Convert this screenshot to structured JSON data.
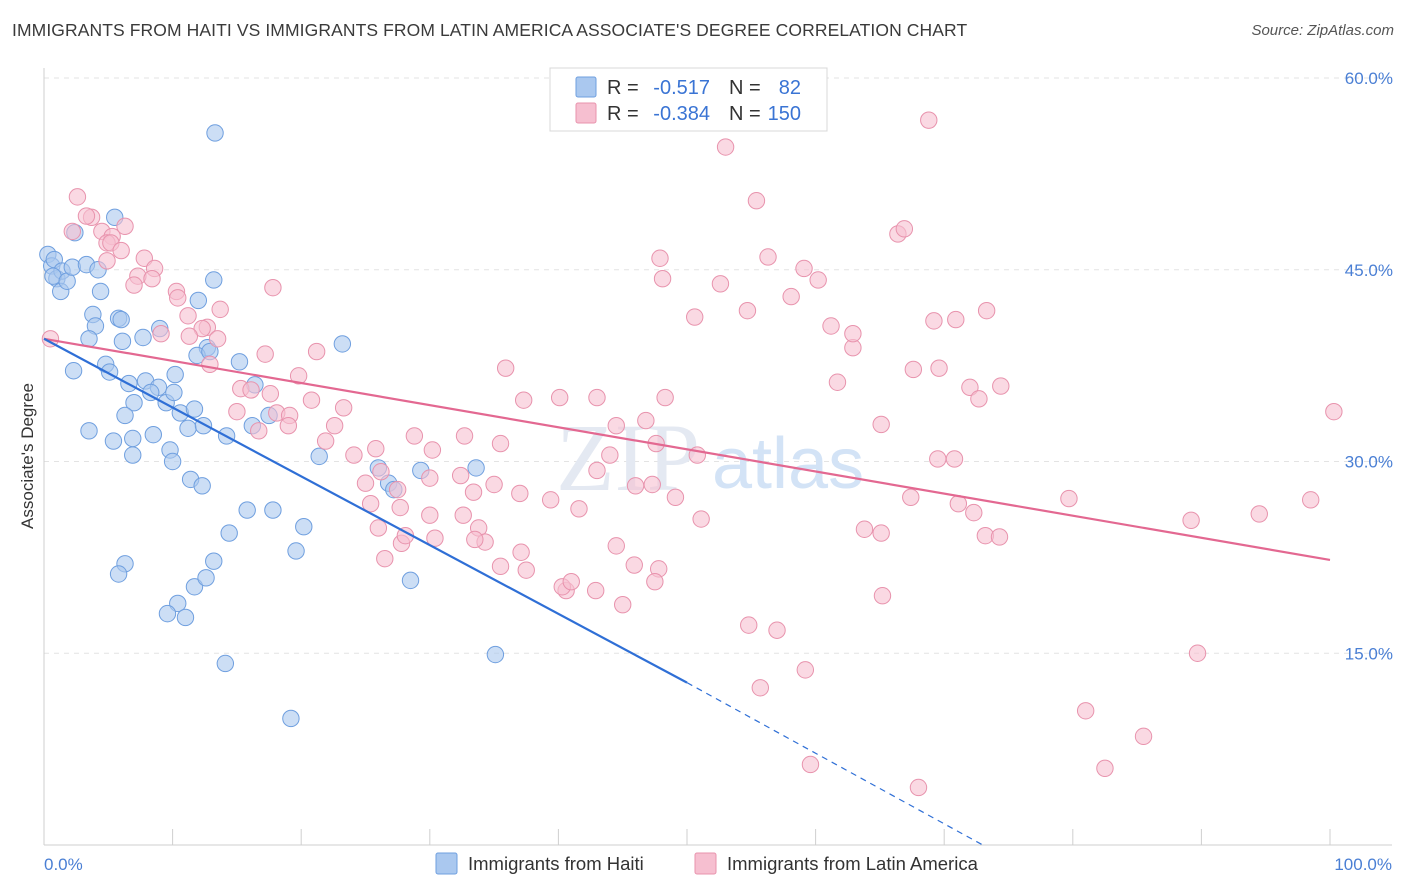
{
  "title": "IMMIGRANTS FROM HAITI VS IMMIGRANTS FROM LATIN AMERICA ASSOCIATE'S DEGREE CORRELATION CHART",
  "source": "Source: ZipAtlas.com",
  "watermark": {
    "part1": "ZIP",
    "part2": "atlas"
  },
  "colors": {
    "haiti_fill": "#aac8ef",
    "haiti_stroke": "#6f9fdf",
    "haiti_line": "#2f6fd6",
    "latam_fill": "#f6bfd0",
    "latam_stroke": "#e893ad",
    "latam_line": "#e36891",
    "tick_text": "#4a7fd4",
    "grid": "#e3e3e3"
  },
  "legend": {
    "rows": [
      {
        "r_label": "R =",
        "r_value": "-0.517",
        "n_label": "N =",
        "n_value": "82"
      },
      {
        "r_label": "R =",
        "r_value": "-0.384",
        "n_label": "N =",
        "n_value": "150"
      }
    ]
  },
  "chart_data": {
    "type": "scatter",
    "title": "IMMIGRANTS FROM HAITI VS IMMIGRANTS FROM LATIN AMERICA ASSOCIATE'S DEGREE CORRELATION CHART",
    "xlabel": "",
    "ylabel": "Associate's Degree",
    "xlim": [
      0,
      100
    ],
    "ylim": [
      0,
      60
    ],
    "x_tick_labels": [
      "0.0%",
      "100.0%"
    ],
    "y_ticks": [
      15,
      30,
      45,
      60
    ],
    "y_tick_labels": [
      "15.0%",
      "30.0%",
      "45.0%",
      "60.0%"
    ],
    "grid": true,
    "legend_position": "top-center",
    "series": [
      {
        "name": "Immigrants from Haiti",
        "color": "#aac8ef",
        "trend": {
          "x": [
            0,
            50
          ],
          "y": [
            39.6,
            12.7
          ],
          "dashed_to": {
            "x": 73,
            "y": 0
          }
        },
        "points": [
          [
            0.3,
            46.2
          ],
          [
            0.6,
            45.3
          ],
          [
            0.8,
            45.8
          ],
          [
            1.0,
            44.3
          ],
          [
            1.4,
            44.9
          ],
          [
            0.7,
            44.5
          ],
          [
            1.3,
            43.3
          ],
          [
            1.8,
            44.1
          ],
          [
            2.2,
            45.2
          ],
          [
            2.4,
            47.9
          ],
          [
            3.3,
            45.4
          ],
          [
            4.2,
            45.0
          ],
          [
            5.5,
            49.1
          ],
          [
            4.4,
            43.3
          ],
          [
            3.8,
            41.5
          ],
          [
            5.8,
            41.2
          ],
          [
            6.0,
            41.1
          ],
          [
            4.0,
            40.6
          ],
          [
            3.5,
            39.6
          ],
          [
            6.1,
            39.4
          ],
          [
            7.7,
            39.7
          ],
          [
            9.0,
            40.4
          ],
          [
            13.3,
            55.7
          ],
          [
            13.2,
            44.2
          ],
          [
            12.0,
            42.6
          ],
          [
            12.7,
            38.9
          ],
          [
            11.9,
            38.3
          ],
          [
            15.2,
            37.8
          ],
          [
            2.3,
            37.1
          ],
          [
            4.8,
            37.6
          ],
          [
            5.1,
            37.0
          ],
          [
            6.6,
            36.1
          ],
          [
            7.9,
            36.3
          ],
          [
            8.9,
            35.8
          ],
          [
            10.2,
            36.8
          ],
          [
            9.5,
            34.6
          ],
          [
            7.0,
            34.6
          ],
          [
            6.3,
            33.6
          ],
          [
            8.3,
            35.4
          ],
          [
            10.1,
            35.4
          ],
          [
            10.6,
            33.8
          ],
          [
            11.7,
            34.1
          ],
          [
            16.4,
            36.0
          ],
          [
            16.2,
            32.8
          ],
          [
            17.5,
            33.6
          ],
          [
            3.5,
            32.4
          ],
          [
            5.4,
            31.6
          ],
          [
            6.9,
            31.8
          ],
          [
            8.5,
            32.1
          ],
          [
            9.8,
            30.9
          ],
          [
            11.2,
            32.6
          ],
          [
            12.4,
            32.8
          ],
          [
            14.2,
            32.0
          ],
          [
            6.9,
            30.5
          ],
          [
            10.0,
            30.0
          ],
          [
            11.4,
            28.6
          ],
          [
            12.3,
            28.1
          ],
          [
            15.8,
            26.2
          ],
          [
            17.8,
            26.2
          ],
          [
            14.4,
            24.4
          ],
          [
            20.2,
            24.9
          ],
          [
            19.6,
            23.0
          ],
          [
            13.2,
            22.2
          ],
          [
            11.7,
            20.2
          ],
          [
            12.6,
            20.9
          ],
          [
            10.4,
            18.9
          ],
          [
            9.6,
            18.1
          ],
          [
            11.0,
            17.8
          ],
          [
            14.1,
            14.2
          ],
          [
            19.2,
            9.9
          ],
          [
            12.9,
            38.6
          ],
          [
            21.4,
            30.4
          ],
          [
            23.2,
            39.2
          ],
          [
            26.0,
            29.5
          ],
          [
            26.8,
            28.3
          ],
          [
            27.2,
            27.8
          ],
          [
            28.5,
            20.7
          ],
          [
            29.3,
            29.3
          ],
          [
            33.6,
            29.5
          ],
          [
            35.1,
            14.9
          ],
          [
            6.3,
            22.0
          ],
          [
            5.8,
            21.2
          ]
        ]
      },
      {
        "name": "Immigrants from Latin America",
        "color": "#f6bfd0",
        "trend": {
          "x": [
            0,
            100
          ],
          "y": [
            39.6,
            22.3
          ]
        },
        "points": [
          [
            0.5,
            39.6
          ],
          [
            2.2,
            48.0
          ],
          [
            2.6,
            50.7
          ],
          [
            3.7,
            49.1
          ],
          [
            3.3,
            49.2
          ],
          [
            4.5,
            48.0
          ],
          [
            5.3,
            47.6
          ],
          [
            6.3,
            48.4
          ],
          [
            4.9,
            47.1
          ],
          [
            5.2,
            47.1
          ],
          [
            6.0,
            46.5
          ],
          [
            4.9,
            45.7
          ],
          [
            7.8,
            45.9
          ],
          [
            8.6,
            45.1
          ],
          [
            7.3,
            44.5
          ],
          [
            7.0,
            43.8
          ],
          [
            8.4,
            44.3
          ],
          [
            10.3,
            43.3
          ],
          [
            10.4,
            42.8
          ],
          [
            13.7,
            41.9
          ],
          [
            11.2,
            41.4
          ],
          [
            12.7,
            40.5
          ],
          [
            12.3,
            40.4
          ],
          [
            9.1,
            40.0
          ],
          [
            11.3,
            39.8
          ],
          [
            13.5,
            39.6
          ],
          [
            12.9,
            37.6
          ],
          [
            17.2,
            38.4
          ],
          [
            17.8,
            43.6
          ],
          [
            21.2,
            38.6
          ],
          [
            15.3,
            35.7
          ],
          [
            16.1,
            35.6
          ],
          [
            17.6,
            35.3
          ],
          [
            19.8,
            36.7
          ],
          [
            20.8,
            34.8
          ],
          [
            18.1,
            33.8
          ],
          [
            19.1,
            33.6
          ],
          [
            23.3,
            34.2
          ],
          [
            15.0,
            33.9
          ],
          [
            16.7,
            32.4
          ],
          [
            19.0,
            32.8
          ],
          [
            22.6,
            32.8
          ],
          [
            21.9,
            31.6
          ],
          [
            24.1,
            30.5
          ],
          [
            25.8,
            31.0
          ],
          [
            28.8,
            32.0
          ],
          [
            30.2,
            30.9
          ],
          [
            32.7,
            32.0
          ],
          [
            35.5,
            31.4
          ],
          [
            37.3,
            34.8
          ],
          [
            35.9,
            37.3
          ],
          [
            40.1,
            35.0
          ],
          [
            43.0,
            35.0
          ],
          [
            44.5,
            32.8
          ],
          [
            46.8,
            33.2
          ],
          [
            47.6,
            31.4
          ],
          [
            48.3,
            35.0
          ],
          [
            50.8,
            30.5
          ],
          [
            26.2,
            29.2
          ],
          [
            25.0,
            28.3
          ],
          [
            27.5,
            27.8
          ],
          [
            30.0,
            28.7
          ],
          [
            32.4,
            28.9
          ],
          [
            33.4,
            27.6
          ],
          [
            35.0,
            28.2
          ],
          [
            37.0,
            27.5
          ],
          [
            39.4,
            27.0
          ],
          [
            41.6,
            26.3
          ],
          [
            43.0,
            29.3
          ],
          [
            44.0,
            30.5
          ],
          [
            46.0,
            28.1
          ],
          [
            47.3,
            28.2
          ],
          [
            49.1,
            27.2
          ],
          [
            25.4,
            26.7
          ],
          [
            26.0,
            24.8
          ],
          [
            27.7,
            26.4
          ],
          [
            30.0,
            25.8
          ],
          [
            30.4,
            24.0
          ],
          [
            32.6,
            25.8
          ],
          [
            33.8,
            24.8
          ],
          [
            34.3,
            23.7
          ],
          [
            33.5,
            23.9
          ],
          [
            37.1,
            22.9
          ],
          [
            37.5,
            21.5
          ],
          [
            35.5,
            21.8
          ],
          [
            27.8,
            23.6
          ],
          [
            28.1,
            24.2
          ],
          [
            26.5,
            22.4
          ],
          [
            40.6,
            19.9
          ],
          [
            40.3,
            20.2
          ],
          [
            42.9,
            19.9
          ],
          [
            44.5,
            23.4
          ],
          [
            45.9,
            21.9
          ],
          [
            47.8,
            21.6
          ],
          [
            47.5,
            20.6
          ],
          [
            45.0,
            18.8
          ],
          [
            41.0,
            20.6
          ],
          [
            51.1,
            25.5
          ],
          [
            54.8,
            17.2
          ],
          [
            57.0,
            16.8
          ],
          [
            55.7,
            12.3
          ],
          [
            59.2,
            13.7
          ],
          [
            63.8,
            24.7
          ],
          [
            65.2,
            19.5
          ],
          [
            65.1,
            24.4
          ],
          [
            67.4,
            27.2
          ],
          [
            69.5,
            30.2
          ],
          [
            70.8,
            30.2
          ],
          [
            71.1,
            26.7
          ],
          [
            72.3,
            26.0
          ],
          [
            73.2,
            24.2
          ],
          [
            74.3,
            24.1
          ],
          [
            72.0,
            35.8
          ],
          [
            74.4,
            35.9
          ],
          [
            67.6,
            37.2
          ],
          [
            69.6,
            37.3
          ],
          [
            72.7,
            34.9
          ],
          [
            79.7,
            27.1
          ],
          [
            89.2,
            25.4
          ],
          [
            89.7,
            15.0
          ],
          [
            94.5,
            25.9
          ],
          [
            98.5,
            27.0
          ],
          [
            100.3,
            33.9
          ],
          [
            81.0,
            10.5
          ],
          [
            85.5,
            8.5
          ],
          [
            82.5,
            6.0
          ],
          [
            68.0,
            4.5
          ],
          [
            59.6,
            6.3
          ],
          [
            47.9,
            45.9
          ],
          [
            48.1,
            44.3
          ],
          [
            50.6,
            41.3
          ],
          [
            52.6,
            43.9
          ],
          [
            54.7,
            41.8
          ],
          [
            56.3,
            46.0
          ],
          [
            59.1,
            45.1
          ],
          [
            60.2,
            44.2
          ],
          [
            58.1,
            42.9
          ],
          [
            61.2,
            40.6
          ],
          [
            62.9,
            38.9
          ],
          [
            62.9,
            40.0
          ],
          [
            61.7,
            36.2
          ],
          [
            65.1,
            32.9
          ],
          [
            66.4,
            47.8
          ],
          [
            66.9,
            48.2
          ],
          [
            68.8,
            56.7
          ],
          [
            69.2,
            41.0
          ],
          [
            70.9,
            41.1
          ],
          [
            73.3,
            41.8
          ],
          [
            53.0,
            54.6
          ],
          [
            55.4,
            50.4
          ]
        ]
      }
    ]
  },
  "bottom_legend": [
    "Immigrants from Haiti",
    "Immigrants from Latin America"
  ]
}
